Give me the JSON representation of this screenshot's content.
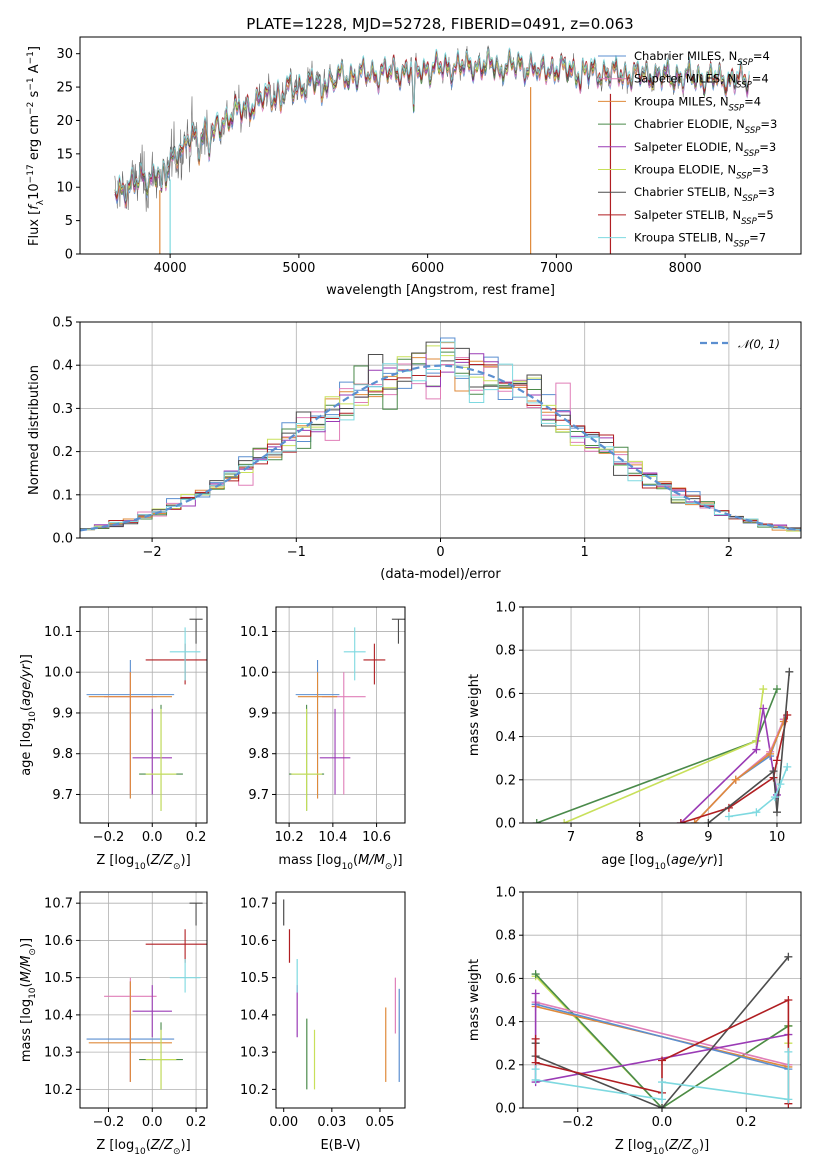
{
  "figure_title": "PLATE=1228, MJD=52728, FIBERID=0491, z=0.063",
  "colors": {
    "Chabrier MILES": "#5b8fd0",
    "Salpeter MILES": "#e07fb8",
    "Kroupa MILES": "#df8a3a",
    "Chabrier ELODIE": "#4a8a4a",
    "Salpeter ELODIE": "#9a3bb5",
    "Kroupa ELODIE": "#c8e05a",
    "Chabrier STELIB": "#4d4d4d",
    "Salpeter STELIB": "#b01e22",
    "Kroupa STELIB": "#7ed9e0",
    "normal": "#5b8fd0"
  },
  "chart_data": [
    {
      "id": "spectrum",
      "type": "line",
      "xlabel": "wavelength [Angstrom, rest frame]",
      "ylabel": "Flux [f_λ10⁻¹⁷ erg cm⁻² s⁻¹ A⁻¹]",
      "xlim": [
        3300,
        8900
      ],
      "ylim": [
        0,
        32.5
      ],
      "xticks": [
        4000,
        5000,
        6000,
        7000,
        8000
      ],
      "yticks": [
        0,
        5,
        10,
        15,
        20,
        25,
        30
      ],
      "grid": false,
      "legend_position": "lower-right",
      "legend": [
        {
          "name": "Chabrier MILES",
          "label": "Chabrier MILES, N",
          "nssp": "=4"
        },
        {
          "name": "Salpeter MILES",
          "label": "Salpeter MILES, N",
          "nssp": "=4"
        },
        {
          "name": "Kroupa MILES",
          "label": "Kroupa MILES, N",
          "nssp": "=4"
        },
        {
          "name": "Chabrier ELODIE",
          "label": "Chabrier ELODIE, N",
          "nssp": "=3"
        },
        {
          "name": "Salpeter ELODIE",
          "label": "Salpeter ELODIE, N",
          "nssp": "=3"
        },
        {
          "name": "Kroupa ELODIE",
          "label": "Kroupa ELODIE, N",
          "nssp": "=3"
        },
        {
          "name": "Chabrier STELIB",
          "label": "Chabrier STELIB, N",
          "nssp": "=3"
        },
        {
          "name": "Salpeter STELIB",
          "label": "Salpeter STELIB, N",
          "nssp": "=5"
        },
        {
          "name": "Kroupa STELIB",
          "label": "Kroupa STELIB, N",
          "nssp": "=7"
        }
      ],
      "nssp_subscript": "SSP",
      "continuum": [
        [
          3570,
          9
        ],
        [
          3700,
          10.5
        ],
        [
          3850,
          11.5
        ],
        [
          3950,
          13
        ],
        [
          4100,
          16.5
        ],
        [
          4300,
          18.5
        ],
        [
          4500,
          21
        ],
        [
          4750,
          23.5
        ],
        [
          5000,
          25
        ],
        [
          5300,
          26.5
        ],
        [
          5600,
          27
        ],
        [
          5900,
          27.5
        ],
        [
          6200,
          28
        ],
        [
          6500,
          28.3
        ],
        [
          6800,
          28
        ],
        [
          7100,
          27.5
        ],
        [
          7400,
          27
        ],
        [
          7700,
          26.8
        ],
        [
          8000,
          26.5
        ],
        [
          8300,
          26.2
        ],
        [
          8500,
          26
        ]
      ],
      "absorption_dips": [
        [
          3934,
          5
        ],
        [
          3968,
          4
        ],
        [
          4101,
          2.5
        ],
        [
          4227,
          2
        ],
        [
          4304,
          4
        ],
        [
          4340,
          3
        ],
        [
          4861,
          2
        ],
        [
          5175,
          3.5
        ],
        [
          5270,
          2
        ],
        [
          5893,
          7
        ],
        [
          6563,
          2
        ],
        [
          6870,
          3
        ],
        [
          7190,
          2
        ]
      ],
      "model_dropouts": [
        3920,
        4000,
        6800,
        7420
      ]
    },
    {
      "id": "residuals",
      "type": "histogram",
      "xlabel": "(data-model)/error",
      "ylabel": "Normed distribution",
      "xlim": [
        -2.5,
        2.5
      ],
      "ylim": [
        0,
        0.5
      ],
      "xticks": [
        -2,
        -1,
        0,
        1,
        2
      ],
      "yticks": [
        0.0,
        0.1,
        0.2,
        0.3,
        0.4,
        0.5
      ],
      "grid": true,
      "legend_position": "top-right",
      "legend_label": "𝒩(0, 1)",
      "bin_width": 0.1
    },
    {
      "id": "age-vs-Z",
      "type": "errorbar",
      "xlabel": "Z [log₁₀(Z/Z☉)]",
      "ylabel": "age  [log₁₀(age/yr)]",
      "xlim": [
        -0.33,
        0.25
      ],
      "ylim": [
        9.63,
        10.16
      ],
      "xticks": [
        -0.2,
        0.0,
        0.2
      ],
      "yticks": [
        9.7,
        9.8,
        9.9,
        10.0,
        10.1
      ],
      "grid": true,
      "points": [
        {
          "s": "Chabrier MILES",
          "x": -0.1,
          "xerr": 0.2,
          "y": 9.945,
          "ylo": 9.69,
          "yhi": 10.03
        },
        {
          "s": "Salpeter MILES",
          "x": -0.1,
          "xerr": 0.12,
          "y": 9.94,
          "ylo": 9.7,
          "yhi": 10.0
        },
        {
          "s": "Kroupa MILES",
          "x": -0.1,
          "xerr": 0.19,
          "y": 9.94,
          "ylo": 9.69,
          "yhi": 10.0
        },
        {
          "s": "Chabrier ELODIE",
          "x": 0.04,
          "xerr": 0.1,
          "y": 9.75,
          "ylo": 9.66,
          "yhi": 9.92
        },
        {
          "s": "Salpeter ELODIE",
          "x": 0.0,
          "xerr": 0.09,
          "y": 9.79,
          "ylo": 9.7,
          "yhi": 9.91
        },
        {
          "s": "Kroupa ELODIE",
          "x": 0.04,
          "xerr": 0.07,
          "y": 9.75,
          "ylo": 9.66,
          "yhi": 9.91
        },
        {
          "s": "Chabrier STELIB",
          "x": 0.2,
          "xerr": 0.03,
          "y": 10.13,
          "ylo": 10.07,
          "yhi": 10.13
        },
        {
          "s": "Salpeter STELIB",
          "x": 0.15,
          "xerr": 0.18,
          "y": 10.03,
          "ylo": 9.97,
          "yhi": 10.07
        },
        {
          "s": "Kroupa STELIB",
          "x": 0.15,
          "xerr": 0.07,
          "y": 10.05,
          "ylo": 9.98,
          "yhi": 10.11
        }
      ]
    },
    {
      "id": "age-vs-mass",
      "type": "errorbar",
      "xlabel": "mass [log₁₀(M/M☉)]",
      "ylabel": "",
      "xlim": [
        10.14,
        10.73
      ],
      "ylim": [
        9.63,
        10.16
      ],
      "xticks": [
        10.2,
        10.4,
        10.6
      ],
      "yticks": [
        9.7,
        9.8,
        9.9,
        10.0,
        10.1
      ],
      "grid": true,
      "points": [
        {
          "s": "Chabrier MILES",
          "x": 10.33,
          "xerr": 0.1,
          "y": 9.945,
          "ylo": 9.69,
          "yhi": 10.03
        },
        {
          "s": "Salpeter MILES",
          "x": 10.45,
          "xerr": 0.1,
          "y": 9.94,
          "ylo": 9.7,
          "yhi": 10.0
        },
        {
          "s": "Kroupa MILES",
          "x": 10.33,
          "xerr": 0.09,
          "y": 9.94,
          "ylo": 9.69,
          "yhi": 10.0
        },
        {
          "s": "Chabrier ELODIE",
          "x": 10.28,
          "xerr": 0.08,
          "y": 9.75,
          "ylo": 9.66,
          "yhi": 9.92
        },
        {
          "s": "Salpeter ELODIE",
          "x": 10.41,
          "xerr": 0.07,
          "y": 9.79,
          "ylo": 9.7,
          "yhi": 9.91
        },
        {
          "s": "Kroupa ELODIE",
          "x": 10.28,
          "xerr": 0.07,
          "y": 9.75,
          "ylo": 9.66,
          "yhi": 9.91
        },
        {
          "s": "Chabrier STELIB",
          "x": 10.7,
          "xerr": 0.03,
          "y": 10.13,
          "ylo": 10.07,
          "yhi": 10.13
        },
        {
          "s": "Salpeter STELIB",
          "x": 10.59,
          "xerr": 0.05,
          "y": 10.03,
          "ylo": 9.97,
          "yhi": 10.07
        },
        {
          "s": "Kroupa STELIB",
          "x": 10.5,
          "xerr": 0.05,
          "y": 10.05,
          "ylo": 9.98,
          "yhi": 10.11
        }
      ]
    },
    {
      "id": "mass-weight-vs-age",
      "type": "line",
      "xlabel": "age  [log₁₀(age/yr)]",
      "ylabel": "mass weight",
      "xlim": [
        6.3,
        10.35
      ],
      "ylim": [
        0.0,
        1.0
      ],
      "xticks": [
        7,
        8,
        9,
        10
      ],
      "yticks": [
        0.0,
        0.2,
        0.4,
        0.6,
        0.8,
        1.0
      ],
      "grid": true,
      "series": [
        {
          "s": "Chabrier ELODIE",
          "x": [
            6.5,
            9.7,
            10.0
          ],
          "y": [
            0.0,
            0.38,
            0.62
          ]
        },
        {
          "s": "Kroupa ELODIE",
          "x": [
            6.9,
            9.7,
            9.8
          ],
          "y": [
            0.0,
            0.38,
            0.62
          ]
        },
        {
          "s": "Salpeter ELODIE",
          "x": [
            8.6,
            9.7,
            9.8,
            10.0
          ],
          "y": [
            0.0,
            0.34,
            0.53,
            0.13
          ]
        },
        {
          "s": "Chabrier MILES",
          "x": [
            8.8,
            9.4,
            9.9,
            10.1
          ],
          "y": [
            0.0,
            0.2,
            0.31,
            0.48
          ]
        },
        {
          "s": "Salpeter MILES",
          "x": [
            8.8,
            9.4,
            9.9,
            10.1
          ],
          "y": [
            0.0,
            0.2,
            0.33,
            0.48
          ]
        },
        {
          "s": "Kroupa MILES",
          "x": [
            8.8,
            9.4,
            9.9,
            10.1
          ],
          "y": [
            0.0,
            0.2,
            0.32,
            0.47
          ]
        },
        {
          "s": "Salpeter STELIB",
          "x": [
            8.6,
            9.3,
            9.95,
            10.0,
            10.15
          ],
          "y": [
            0.0,
            0.07,
            0.21,
            0.29,
            0.5
          ]
        },
        {
          "s": "Chabrier STELIB",
          "x": [
            9.0,
            9.95,
            10.0,
            10.18
          ],
          "y": [
            0.0,
            0.24,
            0.05,
            0.7
          ]
        },
        {
          "s": "Kroupa STELIB",
          "x": [
            9.3,
            9.7,
            9.97,
            10.05,
            10.15
          ],
          "y": [
            0.03,
            0.05,
            0.12,
            0.18,
            0.26
          ]
        }
      ]
    },
    {
      "id": "mass-vs-Z",
      "type": "errorbar",
      "xlabel": "Z [log₁₀(Z/Z☉)]",
      "ylabel": "mass [log₁₀(M/M☉)]",
      "xlim": [
        -0.33,
        0.25
      ],
      "ylim": [
        10.15,
        10.73
      ],
      "xticks": [
        -0.2,
        0.0,
        0.2
      ],
      "yticks": [
        10.2,
        10.3,
        10.4,
        10.5,
        10.6,
        10.7
      ],
      "grid": true,
      "points": [
        {
          "s": "Chabrier MILES",
          "x": -0.1,
          "xerr": 0.2,
          "y": 10.335,
          "ylo": 10.22,
          "yhi": 10.49
        },
        {
          "s": "Salpeter MILES",
          "x": -0.1,
          "xerr": 0.12,
          "y": 10.45,
          "ylo": 10.22,
          "yhi": 10.5
        },
        {
          "s": "Kroupa MILES",
          "x": -0.1,
          "xerr": 0.19,
          "y": 10.325,
          "ylo": 10.22,
          "yhi": 10.49
        },
        {
          "s": "Chabrier ELODIE",
          "x": 0.04,
          "xerr": 0.1,
          "y": 10.28,
          "ylo": 10.2,
          "yhi": 10.38
        },
        {
          "s": "Salpeter ELODIE",
          "x": 0.0,
          "xerr": 0.09,
          "y": 10.41,
          "ylo": 10.34,
          "yhi": 10.48
        },
        {
          "s": "Kroupa ELODIE",
          "x": 0.04,
          "xerr": 0.07,
          "y": 10.28,
          "ylo": 10.2,
          "yhi": 10.36
        },
        {
          "s": "Chabrier STELIB",
          "x": 0.2,
          "xerr": 0.03,
          "y": 10.7,
          "ylo": 10.64,
          "yhi": 10.7
        },
        {
          "s": "Salpeter STELIB",
          "x": 0.15,
          "xerr": 0.18,
          "y": 10.59,
          "ylo": 10.54,
          "yhi": 10.63
        },
        {
          "s": "Kroupa STELIB",
          "x": 0.15,
          "xerr": 0.07,
          "y": 10.5,
          "ylo": 10.46,
          "yhi": 10.55
        }
      ]
    },
    {
      "id": "mass-vs-EBV",
      "type": "errorbar",
      "xlabel": "E(B-V)",
      "ylabel": "",
      "xlim": [
        -0.004,
        0.063
      ],
      "ylim": [
        10.15,
        10.73
      ],
      "xticks": [
        0.0,
        0.025,
        0.05
      ],
      "yticks": [
        10.2,
        10.3,
        10.4,
        10.5,
        10.6,
        10.7
      ],
      "grid": false,
      "points": [
        {
          "s": "Chabrier MILES",
          "x": 0.06,
          "ylo": 10.22,
          "yhi": 10.47
        },
        {
          "s": "Salpeter MILES",
          "x": 0.058,
          "ylo": 10.35,
          "yhi": 10.5
        },
        {
          "s": "Kroupa MILES",
          "x": 0.053,
          "ylo": 10.22,
          "yhi": 10.42
        },
        {
          "s": "Chabrier ELODIE",
          "x": 0.012,
          "ylo": 10.2,
          "yhi": 10.39
        },
        {
          "s": "Salpeter ELODIE",
          "x": 0.007,
          "ylo": 10.34,
          "yhi": 10.48
        },
        {
          "s": "Kroupa ELODIE",
          "x": 0.016,
          "ylo": 10.2,
          "yhi": 10.36
        },
        {
          "s": "Chabrier STELIB",
          "x": 0.0,
          "ylo": 10.64,
          "yhi": 10.71
        },
        {
          "s": "Salpeter STELIB",
          "x": 0.003,
          "ylo": 10.54,
          "yhi": 10.63
        },
        {
          "s": "Kroupa STELIB",
          "x": 0.007,
          "ylo": 10.46,
          "yhi": 10.55
        }
      ]
    },
    {
      "id": "mass-weight-vs-Z",
      "type": "line",
      "xlabel": "Z [log₁₀(Z/Z☉)]",
      "ylabel": "mass weight",
      "xlim": [
        -0.33,
        0.33
      ],
      "ylim": [
        0.0,
        1.0
      ],
      "xticks": [
        -0.2,
        0.0,
        0.2
      ],
      "yticks": [
        0.0,
        0.2,
        0.4,
        0.6,
        0.8,
        1.0
      ],
      "grid": true,
      "series": [
        {
          "s": "Kroupa ELODIE",
          "x": [
            -0.3,
            0.0,
            0.3,
            0.3
          ],
          "y": [
            0.61,
            0.0,
            0.38,
            0.3
          ]
        },
        {
          "s": "Chabrier ELODIE",
          "x": [
            -0.3,
            0.0,
            0.3
          ],
          "y": [
            0.62,
            0.0,
            0.38
          ]
        },
        {
          "s": "Salpeter MILES",
          "x": [
            -0.3,
            0.3
          ],
          "y": [
            0.49,
            0.2
          ]
        },
        {
          "s": "Kroupa MILES",
          "x": [
            -0.3,
            0.3
          ],
          "y": [
            0.47,
            0.19
          ]
        },
        {
          "s": "Chabrier MILES",
          "x": [
            -0.3,
            0.3
          ],
          "y": [
            0.48,
            0.18
          ]
        },
        {
          "s": "Salpeter ELODIE",
          "x": [
            -0.3,
            -0.3,
            0.3
          ],
          "y": [
            0.53,
            0.12,
            0.34
          ]
        },
        {
          "s": "Chabrier STELIB",
          "x": [
            -0.3,
            -0.3,
            0.0,
            0.3
          ],
          "y": [
            0.3,
            0.24,
            0.0,
            0.7
          ]
        },
        {
          "s": "Salpeter STELIB",
          "x": [
            -0.3,
            -0.3,
            0.0,
            0.0,
            0.3,
            0.3
          ],
          "y": [
            0.32,
            0.21,
            0.07,
            0.22,
            0.5,
            0.02
          ]
        },
        {
          "s": "Kroupa STELIB",
          "x": [
            -0.3,
            -0.3,
            0.0,
            0.0,
            0.3,
            0.3
          ],
          "y": [
            0.18,
            0.13,
            0.04,
            0.12,
            0.04,
            0.26
          ]
        }
      ]
    }
  ]
}
